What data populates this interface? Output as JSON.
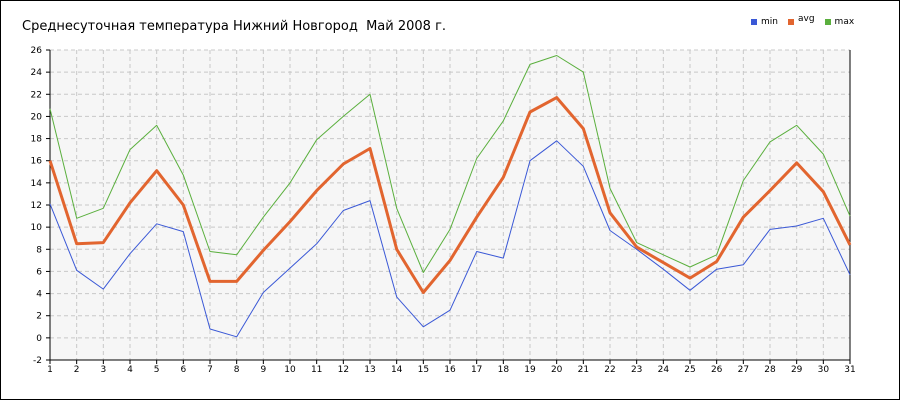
{
  "chart_data": {
    "type": "line",
    "title": "Среднесуточная температура Нижний Новгород  Май 2008 г.",
    "xlabel": "",
    "ylabel": "",
    "x": [
      1,
      2,
      3,
      4,
      5,
      6,
      7,
      8,
      9,
      10,
      11,
      12,
      13,
      14,
      15,
      16,
      17,
      18,
      19,
      20,
      21,
      22,
      23,
      24,
      25,
      26,
      27,
      28,
      29,
      30,
      31
    ],
    "xlim": [
      1,
      31
    ],
    "ylim": [
      -2,
      26
    ],
    "yticks": [
      -2,
      0,
      2,
      4,
      6,
      8,
      10,
      12,
      14,
      16,
      18,
      20,
      22,
      24,
      26
    ],
    "grid": true,
    "legend_position": "top-right",
    "series": [
      {
        "name": "min",
        "color": "#3a58d6",
        "values": [
          12.1,
          6.1,
          4.4,
          7.6,
          10.3,
          9.6,
          0.8,
          0.1,
          4.1,
          6.3,
          8.5,
          11.5,
          12.4,
          3.7,
          1.0,
          2.5,
          7.8,
          7.2,
          16.0,
          17.8,
          15.5,
          9.7,
          8.0,
          6.2,
          4.3,
          6.2,
          6.6,
          9.8,
          10.1,
          10.8,
          5.7
        ]
      },
      {
        "name": "avg",
        "color": "#e2652f",
        "values": [
          16.0,
          8.5,
          8.6,
          12.2,
          15.1,
          12.0,
          5.1,
          5.1,
          7.9,
          10.5,
          13.3,
          15.7,
          17.1,
          8.0,
          4.1,
          7.0,
          10.9,
          14.5,
          20.4,
          21.7,
          18.9,
          11.3,
          8.2,
          6.8,
          5.4,
          6.9,
          10.9,
          13.3,
          15.8,
          13.2,
          8.4
        ]
      },
      {
        "name": "max",
        "color": "#5aaf3d",
        "values": [
          20.7,
          10.8,
          11.7,
          17.0,
          19.2,
          14.7,
          7.8,
          7.5,
          10.9,
          14.0,
          17.9,
          20.0,
          22.0,
          11.7,
          5.9,
          9.8,
          16.2,
          19.6,
          24.7,
          25.5,
          24.0,
          13.5,
          8.6,
          7.5,
          6.4,
          7.5,
          14.2,
          17.7,
          19.2,
          16.6,
          11.0
        ]
      }
    ]
  }
}
